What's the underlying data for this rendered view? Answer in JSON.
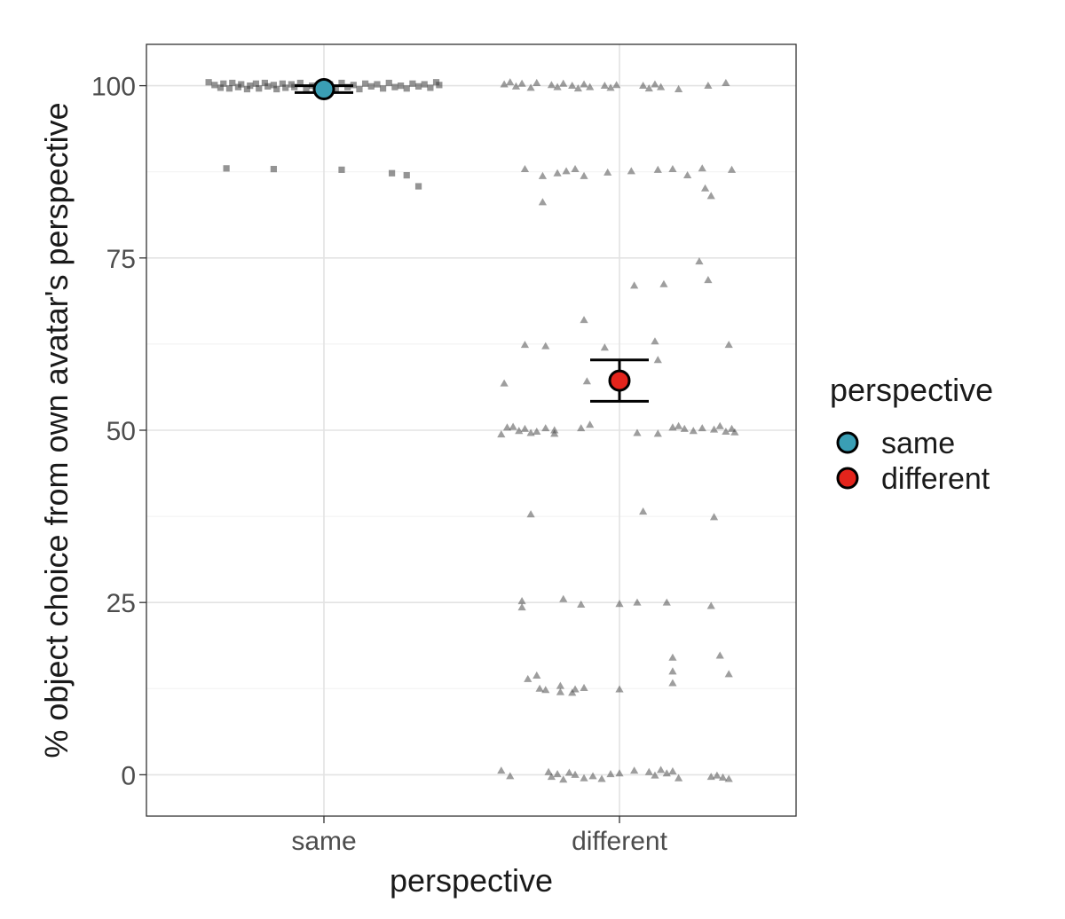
{
  "chart_data": {
    "type": "scatter",
    "title": "",
    "xlabel": "perspective",
    "ylabel": "% object choice from own avatar's perspective",
    "categories": [
      "same",
      "different"
    ],
    "ylim": [
      -6,
      106
    ],
    "yticks": [
      0,
      25,
      50,
      75,
      100
    ],
    "grid": true,
    "legend": {
      "title": "perspective",
      "position": "right",
      "entries": [
        {
          "label": "same",
          "color": "#3a9fb5"
        },
        {
          "label": "different",
          "color": "#e3241c"
        }
      ]
    },
    "summary": [
      {
        "category": "same",
        "mean": 99.5,
        "ci_low": 99.0,
        "ci_high": 100.0,
        "color": "#3a9fb5"
      },
      {
        "category": "different",
        "mean": 57.2,
        "ci_low": 54.2,
        "ci_high": 60.2,
        "color": "#e3241c"
      }
    ],
    "raw_points": {
      "same": {
        "marker": "square",
        "color": "#3d3d3d",
        "points": [
          [
            -0.39,
            100.5
          ],
          [
            -0.37,
            100.1
          ],
          [
            -0.35,
            99.7
          ],
          [
            -0.34,
            100.3
          ],
          [
            -0.32,
            99.6
          ],
          [
            -0.31,
            100.4
          ],
          [
            -0.29,
            99.8
          ],
          [
            -0.28,
            100.2
          ],
          [
            -0.26,
            99.5
          ],
          [
            -0.25,
            100.0
          ],
          [
            -0.23,
            100.3
          ],
          [
            -0.22,
            99.6
          ],
          [
            -0.2,
            100.4
          ],
          [
            -0.19,
            99.9
          ],
          [
            -0.17,
            100.1
          ],
          [
            -0.16,
            99.5
          ],
          [
            -0.14,
            100.3
          ],
          [
            -0.13,
            99.7
          ],
          [
            -0.11,
            100.2
          ],
          [
            -0.1,
            99.8
          ],
          [
            -0.08,
            100.4
          ],
          [
            -0.06,
            99.6
          ],
          [
            -0.04,
            100.0
          ],
          [
            -0.02,
            99.7
          ],
          [
            0.02,
            100.2
          ],
          [
            0.04,
            99.6
          ],
          [
            0.06,
            100.4
          ],
          [
            0.08,
            99.8
          ],
          [
            0.1,
            100.1
          ],
          [
            0.12,
            99.5
          ],
          [
            0.14,
            100.3
          ],
          [
            0.16,
            99.9
          ],
          [
            0.18,
            100.2
          ],
          [
            0.2,
            99.6
          ],
          [
            0.22,
            100.4
          ],
          [
            0.24,
            99.8
          ],
          [
            0.26,
            100.0
          ],
          [
            0.28,
            99.6
          ],
          [
            0.3,
            100.3
          ],
          [
            0.32,
            99.9
          ],
          [
            0.34,
            100.2
          ],
          [
            0.36,
            99.7
          ],
          [
            0.38,
            100.5
          ],
          [
            0.39,
            100.1
          ],
          [
            -0.33,
            88.0
          ],
          [
            -0.17,
            87.9
          ],
          [
            0.06,
            87.8
          ],
          [
            0.23,
            87.3
          ],
          [
            0.28,
            87.0
          ],
          [
            0.32,
            85.4
          ]
        ]
      },
      "different": {
        "marker": "triangle",
        "color": "#3d3d3d",
        "points": [
          [
            -0.39,
            100.2
          ],
          [
            -0.37,
            100.5
          ],
          [
            -0.35,
            99.9
          ],
          [
            -0.33,
            100.3
          ],
          [
            -0.3,
            99.7
          ],
          [
            -0.28,
            100.4
          ],
          [
            -0.23,
            100.1
          ],
          [
            -0.21,
            99.8
          ],
          [
            -0.19,
            100.3
          ],
          [
            -0.16,
            100.0
          ],
          [
            -0.14,
            99.6
          ],
          [
            -0.12,
            100.2
          ],
          [
            -0.1,
            99.8
          ],
          [
            -0.05,
            100.0
          ],
          [
            -0.03,
            99.7
          ],
          [
            -0.01,
            100.1
          ],
          [
            0.08,
            100.0
          ],
          [
            0.1,
            99.6
          ],
          [
            0.12,
            100.2
          ],
          [
            0.14,
            99.8
          ],
          [
            0.2,
            99.5
          ],
          [
            0.3,
            100.0
          ],
          [
            0.36,
            100.4
          ],
          [
            -0.32,
            87.9
          ],
          [
            -0.26,
            86.9
          ],
          [
            -0.21,
            87.3
          ],
          [
            -0.18,
            87.6
          ],
          [
            -0.15,
            87.9
          ],
          [
            -0.12,
            86.9
          ],
          [
            -0.04,
            87.4
          ],
          [
            0.04,
            87.6
          ],
          [
            0.13,
            87.8
          ],
          [
            0.18,
            87.9
          ],
          [
            0.23,
            87.0
          ],
          [
            0.28,
            88.0
          ],
          [
            0.29,
            85.1
          ],
          [
            0.31,
            84.0
          ],
          [
            0.38,
            87.8
          ],
          [
            -0.26,
            83.1
          ],
          [
            0.27,
            74.5
          ],
          [
            0.3,
            71.8
          ],
          [
            0.05,
            71.0
          ],
          [
            0.15,
            71.2
          ],
          [
            -0.12,
            66.0
          ],
          [
            -0.32,
            62.4
          ],
          [
            -0.25,
            62.2
          ],
          [
            -0.05,
            62.0
          ],
          [
            0.12,
            62.9
          ],
          [
            0.37,
            62.4
          ],
          [
            0.13,
            60.2
          ],
          [
            -0.11,
            57.1
          ],
          [
            -0.39,
            56.8
          ],
          [
            -0.4,
            49.4
          ],
          [
            -0.38,
            50.4
          ],
          [
            -0.36,
            50.5
          ],
          [
            -0.34,
            49.9
          ],
          [
            -0.32,
            50.2
          ],
          [
            -0.3,
            49.6
          ],
          [
            -0.28,
            49.8
          ],
          [
            -0.25,
            50.3
          ],
          [
            -0.22,
            49.5
          ],
          [
            -0.22,
            50.0
          ],
          [
            -0.13,
            50.3
          ],
          [
            -0.1,
            50.8
          ],
          [
            0.06,
            49.6
          ],
          [
            0.13,
            49.5
          ],
          [
            0.18,
            50.4
          ],
          [
            0.2,
            50.6
          ],
          [
            0.22,
            50.2
          ],
          [
            0.25,
            49.9
          ],
          [
            0.28,
            50.3
          ],
          [
            0.32,
            50.1
          ],
          [
            0.34,
            50.6
          ],
          [
            0.36,
            49.8
          ],
          [
            0.38,
            50.2
          ],
          [
            0.39,
            49.7
          ],
          [
            -0.3,
            37.8
          ],
          [
            0.08,
            38.2
          ],
          [
            0.32,
            37.4
          ],
          [
            -0.33,
            25.2
          ],
          [
            -0.33,
            24.3
          ],
          [
            -0.19,
            25.5
          ],
          [
            -0.13,
            24.7
          ],
          [
            0.0,
            24.8
          ],
          [
            0.06,
            25.0
          ],
          [
            0.16,
            25.0
          ],
          [
            0.31,
            24.5
          ],
          [
            -0.31,
            13.9
          ],
          [
            -0.28,
            14.4
          ],
          [
            -0.27,
            12.5
          ],
          [
            -0.25,
            12.3
          ],
          [
            -0.2,
            12.0
          ],
          [
            -0.2,
            12.9
          ],
          [
            -0.15,
            12.4
          ],
          [
            -0.12,
            12.6
          ],
          [
            -0.16,
            11.9
          ],
          [
            0.0,
            12.4
          ],
          [
            0.18,
            17.0
          ],
          [
            0.18,
            15.0
          ],
          [
            0.18,
            13.3
          ],
          [
            0.34,
            17.3
          ],
          [
            0.37,
            14.6
          ],
          [
            -0.4,
            0.6
          ],
          [
            -0.37,
            -0.2
          ],
          [
            -0.24,
            0.4
          ],
          [
            -0.23,
            -0.3
          ],
          [
            -0.21,
            0.1
          ],
          [
            -0.19,
            -0.7
          ],
          [
            -0.17,
            0.3
          ],
          [
            -0.15,
            0.0
          ],
          [
            -0.12,
            -0.5
          ],
          [
            -0.09,
            -0.2
          ],
          [
            -0.06,
            -0.6
          ],
          [
            -0.03,
            0.1
          ],
          [
            0.0,
            0.2
          ],
          [
            0.05,
            0.6
          ],
          [
            0.1,
            0.4
          ],
          [
            0.12,
            -0.1
          ],
          [
            0.14,
            0.7
          ],
          [
            0.16,
            0.2
          ],
          [
            0.18,
            0.5
          ],
          [
            0.2,
            -0.5
          ],
          [
            0.31,
            -0.3
          ],
          [
            0.33,
            -0.1
          ],
          [
            0.35,
            -0.4
          ],
          [
            0.37,
            -0.6
          ]
        ]
      }
    }
  }
}
